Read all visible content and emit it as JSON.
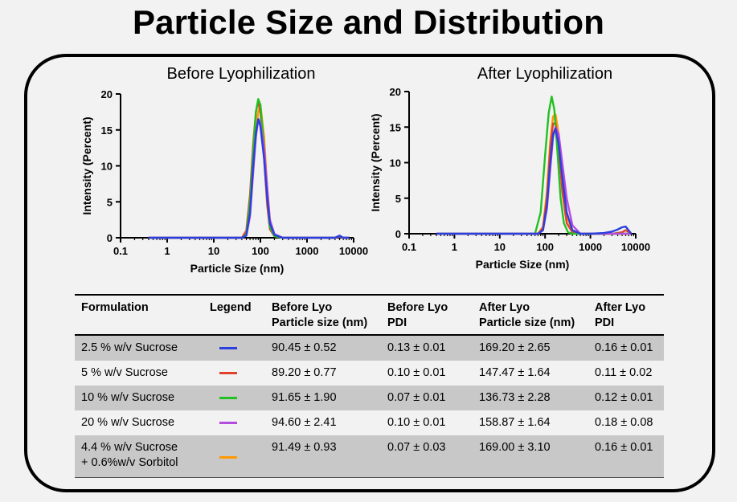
{
  "title": "Particle Size and Distribution",
  "chart_data": [
    {
      "type": "line",
      "title": "Before Lyophilization",
      "xlabel": "Particle Size (nm)",
      "ylabel": "Intensity (Percent)",
      "xscale": "log",
      "xlim": [
        0.1,
        10000
      ],
      "ylim": [
        0,
        20
      ],
      "xticks": [
        "0.1",
        "1",
        "10",
        "100",
        "1000",
        "10000"
      ],
      "yticks": [
        "0",
        "5",
        "10",
        "15",
        "20"
      ],
      "series": [
        {
          "color": "#ff9900",
          "x": [
            0.4,
            40,
            50,
            60,
            70,
            80,
            90,
            100,
            120,
            140,
            160,
            200,
            300,
            1000,
            4000,
            5000,
            6000,
            8000
          ],
          "y": [
            0,
            0,
            0.5,
            4,
            10,
            15,
            17.5,
            18.5,
            14,
            7,
            2.5,
            0.3,
            0,
            0,
            0,
            0.2,
            0,
            0
          ]
        },
        {
          "color": "#e2402a",
          "x": [
            0.4,
            40,
            50,
            60,
            70,
            80,
            90,
            100,
            120,
            140,
            160,
            200,
            300,
            1000,
            4000,
            5000,
            6000,
            8000
          ],
          "y": [
            0,
            0,
            1,
            6,
            13,
            17.5,
            19,
            17.5,
            11,
            4.5,
            1.2,
            0.2,
            0,
            0,
            0,
            0.2,
            0,
            0
          ]
        },
        {
          "color": "#22c022",
          "x": [
            0.4,
            40,
            50,
            60,
            70,
            80,
            90,
            100,
            120,
            140,
            160,
            200,
            300,
            1000,
            4000,
            5000,
            6000,
            8000
          ],
          "y": [
            0,
            0,
            0.5,
            5,
            12,
            17.5,
            19.3,
            18.5,
            12.5,
            5.5,
            1.5,
            0.2,
            0,
            0,
            0,
            0.2,
            0,
            0
          ]
        },
        {
          "color": "#b54ce0",
          "x": [
            0.4,
            40,
            50,
            60,
            70,
            80,
            90,
            100,
            120,
            140,
            160,
            200,
            300,
            1000,
            4000,
            5000,
            6000,
            8000
          ],
          "y": [
            0,
            0,
            0.3,
            3,
            9,
            14,
            16.5,
            16,
            12.5,
            7,
            2.5,
            0.5,
            0,
            0,
            0,
            0.2,
            0,
            0
          ]
        },
        {
          "color": "#2a3fdd",
          "x": [
            0.4,
            40,
            50,
            60,
            70,
            80,
            90,
            100,
            120,
            140,
            160,
            200,
            300,
            1000,
            4000,
            5000,
            6000,
            8000
          ],
          "y": [
            0,
            0,
            0.3,
            3.5,
            10,
            14.5,
            16.5,
            15.5,
            11,
            5.5,
            2,
            0.4,
            0,
            0,
            0,
            0.3,
            0,
            0
          ]
        }
      ]
    },
    {
      "type": "line",
      "title": "After Lyophilization",
      "xlabel": "Particle Size (nm)",
      "ylabel": "Intensity (Percent)",
      "xscale": "log",
      "xlim": [
        0.1,
        10000
      ],
      "ylim": [
        0,
        20
      ],
      "xticks": [
        "0.1",
        "1",
        "10",
        "100",
        "1000",
        "10000"
      ],
      "yticks": [
        "0",
        "5",
        "10",
        "15",
        "20"
      ],
      "series": [
        {
          "color": "#ff9900",
          "x": [
            0.4,
            70,
            90,
            110,
            130,
            150,
            170,
            200,
            240,
            300,
            400,
            600,
            1000,
            5000,
            8000
          ],
          "y": [
            0,
            0,
            1,
            6,
            13,
            16.5,
            16.8,
            14,
            8,
            2.5,
            0.3,
            0,
            0,
            0,
            0
          ]
        },
        {
          "color": "#e2402a",
          "x": [
            0.4,
            70,
            90,
            110,
            130,
            150,
            170,
            200,
            240,
            300,
            400,
            600,
            1000,
            3000,
            5000,
            6000,
            8000
          ],
          "y": [
            0,
            0,
            0.8,
            5,
            12,
            15.5,
            15.5,
            12,
            6,
            1.5,
            0.2,
            0,
            0,
            0,
            0.2,
            0.5,
            0
          ]
        },
        {
          "color": "#22c022",
          "x": [
            0.4,
            60,
            80,
            100,
            120,
            140,
            160,
            190,
            220,
            260,
            320,
            400,
            1000,
            8000
          ],
          "y": [
            0,
            0,
            3,
            11,
            17,
            19.3,
            17.5,
            11,
            5,
            1.5,
            0.2,
            0,
            0,
            0
          ]
        },
        {
          "color": "#b54ce0",
          "x": [
            0.4,
            70,
            90,
            110,
            130,
            150,
            170,
            200,
            240,
            300,
            400,
            600,
            1000,
            8000
          ],
          "y": [
            0,
            0,
            0.5,
            3.5,
            9,
            13.5,
            15,
            14,
            10,
            5,
            1.2,
            0,
            0,
            0
          ]
        },
        {
          "color": "#2a3fdd",
          "x": [
            0.4,
            70,
            90,
            110,
            130,
            150,
            170,
            200,
            240,
            300,
            400,
            600,
            1000,
            2000,
            3000,
            4000,
            5000,
            6000,
            8000
          ],
          "y": [
            0,
            0,
            0.5,
            4,
            10,
            14,
            14.8,
            12.5,
            8,
            3,
            0.5,
            0,
            0,
            0.1,
            0.3,
            0.6,
            0.9,
            1,
            0
          ]
        }
      ]
    }
  ],
  "table": {
    "headers": [
      {
        "text": "Formulation"
      },
      {
        "text": "Legend"
      },
      {
        "text": "Before Lyo\nParticle size (nm)"
      },
      {
        "text": "Before Lyo\nPDI"
      },
      {
        "text": "After Lyo\nParticle size (nm)"
      },
      {
        "text": "After Lyo\nPDI"
      }
    ],
    "rows": [
      {
        "formulation": "2.5 % w/v Sucrose",
        "legend_color": "#2a3fdd",
        "before_size": "90.45 ± 0.52",
        "before_pdi": "0.13 ± 0.01",
        "after_size": "169.20 ± 2.65",
        "after_pdi": "0.16 ± 0.01"
      },
      {
        "formulation": "5 % w/v Sucrose",
        "legend_color": "#e2402a",
        "before_size": "89.20 ± 0.77",
        "before_pdi": "0.10 ± 0.01",
        "after_size": "147.47 ± 1.64",
        "after_pdi": "0.11 ± 0.02"
      },
      {
        "formulation": "10 % w/v Sucrose",
        "legend_color": "#22c022",
        "before_size": "91.65 ± 1.90",
        "before_pdi": "0.07 ± 0.01",
        "after_size": "136.73 ± 2.28",
        "after_pdi": "0.12 ± 0.01"
      },
      {
        "formulation": "20 % w/v Sucrose",
        "legend_color": "#b54ce0",
        "before_size": "94.60 ± 2.41",
        "before_pdi": "0.10 ± 0.01",
        "after_size": "158.87 ± 1.64",
        "after_pdi": "0.18 ± 0.08"
      },
      {
        "formulation": "4.4 % w/v Sucrose\n+ 0.6%w/v Sorbitol",
        "legend_color": "#ff9900",
        "before_size": "91.49 ± 0.93",
        "before_pdi": "0.07 ± 0.03",
        "after_size": "169.00 ± 3.10",
        "after_pdi": "0.16 ± 0.01"
      }
    ]
  }
}
